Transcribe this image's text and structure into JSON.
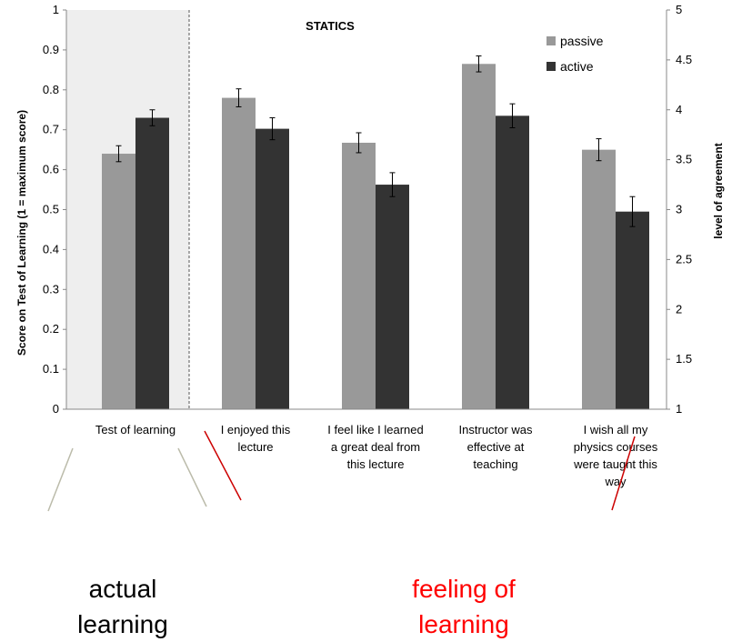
{
  "chart_data": {
    "type": "bar",
    "title": "STATICS",
    "ylabel": "Score on Test of Learning  (1 = maximum score)",
    "y2label": "level of agreement",
    "ylim": [
      0,
      1
    ],
    "y2lim": [
      1,
      5
    ],
    "yticks": [
      "0",
      "0.1",
      "0.2",
      "0.3",
      "0.4",
      "0.5",
      "0.6",
      "0.7",
      "0.8",
      "0.9",
      "1"
    ],
    "y2ticks": [
      "1",
      "1.5",
      "2",
      "2.5",
      "3",
      "3.5",
      "4",
      "4.5",
      "5"
    ],
    "categories": [
      [
        "Test of learning"
      ],
      [
        "I enjoyed this",
        "lecture"
      ],
      [
        "I feel like I learned",
        "a great deal from",
        "this lecture"
      ],
      [
        "Instructor was",
        "effective at",
        "teaching"
      ],
      [
        "I wish all my",
        "physics courses",
        "were taught this",
        "way"
      ]
    ],
    "series": [
      {
        "name": "passive",
        "color": "#999999",
        "values": [
          0.64,
          4.12,
          3.67,
          4.46,
          3.6
        ],
        "errors": [
          0.02,
          0.09,
          0.1,
          0.08,
          0.11
        ]
      },
      {
        "name": "active",
        "color": "#333333",
        "values": [
          0.73,
          3.81,
          3.25,
          3.94,
          2.98
        ],
        "errors": [
          0.02,
          0.11,
          0.12,
          0.12,
          0.15
        ]
      }
    ],
    "legend_position": "top-right",
    "shaded_region": "Test of learning",
    "grid": false
  },
  "captions": {
    "left": [
      "actual",
      "learning"
    ],
    "right": [
      "feeling of",
      "learning"
    ],
    "left_color": "#000000",
    "right_color": "#ff0000"
  }
}
